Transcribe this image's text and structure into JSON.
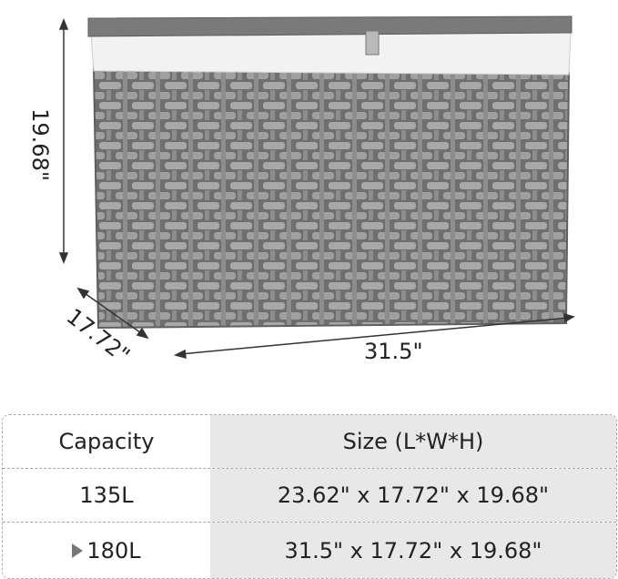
{
  "dimensions": {
    "height": "19.68\"",
    "width": "17.72\"",
    "length": "31.5\""
  },
  "colors": {
    "basket": "#8a8a8a",
    "liner": "#f2f2f2",
    "table_shade": "#e8e8e8"
  },
  "table": {
    "headers": [
      "Capacity",
      "Size (L*W*H)"
    ],
    "rows": [
      {
        "capacity": "135L",
        "size": "23.62\" x 17.72\" x 19.68\"",
        "selected": false
      },
      {
        "capacity": "180L",
        "size": "31.5\" x 17.72\" x 19.68\"",
        "selected": true
      }
    ]
  }
}
